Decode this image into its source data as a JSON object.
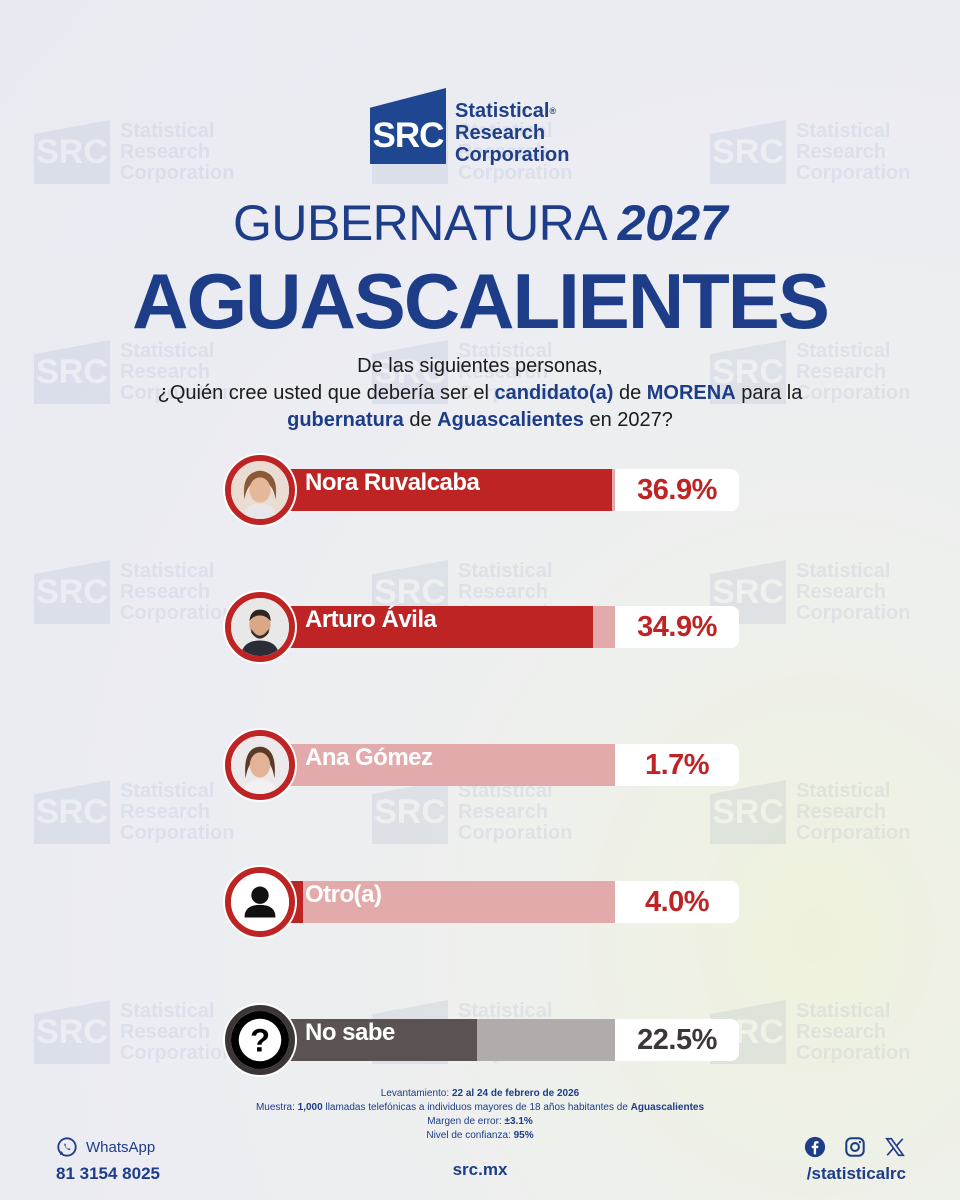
{
  "brand": {
    "logo_abbr": "SRC",
    "name_line1": "Statistical",
    "name_line2": "Research",
    "name_line3": "Corporation",
    "reg_mark": "®",
    "navy": "#1d3d88"
  },
  "header": {
    "title_prefix": "GUBERNATURA",
    "title_year": "2027",
    "state": "AGUASCALIENTES"
  },
  "question": {
    "line1": "De las siguientes personas,",
    "line2_a": "¿Quién cree usted que debería ser el ",
    "line2_b": "candidato(a)",
    "line2_c": " de ",
    "line2_d": "MORENA",
    "line2_e": " para la",
    "line3_a": "gubernatura",
    "line3_b": " de ",
    "line3_c": "Aguascalientes",
    "line3_d": " en 2027?"
  },
  "chart_data": {
    "type": "bar",
    "title": "GUBERNATURA 2027 AGUASCALIENTES",
    "categories": [
      "Nora Ruvalcaba",
      "Arturo Ávila",
      "Ana Gómez",
      "Otro(a)",
      "No sabe"
    ],
    "values": [
      36.9,
      34.9,
      1.7,
      4.0,
      22.5
    ],
    "labels": [
      "36.9%",
      "34.9%",
      "1.7%",
      "4.0%",
      "22.5%"
    ],
    "unit": "%",
    "ylim": [
      0,
      40
    ],
    "colors": {
      "main": "#bf2424",
      "track": "#e2aaab",
      "ring": "#bf2424",
      "nosabe_main": "#5b5352",
      "nosabe_track": "#b1abab",
      "nosabe_ring": "#3c3736"
    }
  },
  "icons": [
    "nora-ruvalcaba-photo",
    "arturo-avila-photo",
    "ana-gomez-photo",
    "person-icon",
    "question-mark-icon"
  ],
  "methodology": {
    "l1_label": "Levantamiento: ",
    "l1_value": "22 al 24 de febrero de 2026",
    "l2_label": "Muestra: ",
    "l2_value": "1,000",
    "l2_mid": " llamadas telefónicas a individuos mayores de 18 años habitantes de ",
    "l2_place": "Aguascalientes",
    "l3_label": "Margen de error: ",
    "l3_value": "±3.1%",
    "l4_label": "Nivel de confianza: ",
    "l4_value": "95%"
  },
  "footer": {
    "whatsapp_label": "WhatsApp",
    "phone": "81 3154 8025",
    "website": "src.mx",
    "social_handle": "/statisticalrc"
  }
}
